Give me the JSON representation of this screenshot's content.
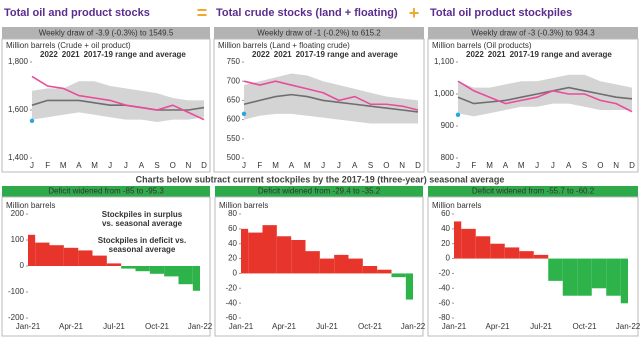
{
  "operators": [
    "=",
    "+"
  ],
  "banner": "Charts below subtract current stockpiles by the 2017-19 (three-year) seasonal average",
  "chart_data": [
    {
      "type": "line",
      "title": "Total oil and product stocks",
      "subtitle": "Weekly draw of -3.9 (-0.3%) to 1549.5",
      "ylabel": "Million barrels (Crude + oil product)",
      "categories": [
        "J",
        "F",
        "M",
        "A",
        "M",
        "J",
        "J",
        "A",
        "S",
        "O",
        "N",
        "D"
      ],
      "series": [
        {
          "name": "2022",
          "color": "#22a7e0",
          "values": [
            1555,
            null,
            null,
            null,
            null,
            null,
            null,
            null,
            null,
            null,
            null,
            null
          ]
        },
        {
          "name": "2021",
          "color": "#ea4c9b",
          "values": [
            1740,
            1700,
            1690,
            1660,
            1650,
            1640,
            1620,
            1610,
            1600,
            1620,
            1590,
            1560
          ]
        },
        {
          "name": "2017-19 range and average",
          "color": "#6e6e6e",
          "band_color": "#d4d4d4",
          "values": [
            1620,
            1640,
            1640,
            1640,
            1630,
            1620,
            1620,
            1610,
            1600,
            1600,
            1600,
            1610
          ],
          "low": [
            1560,
            1570,
            1580,
            1590,
            1580,
            1570,
            1560,
            1560,
            1550,
            1560,
            1560,
            1570
          ],
          "high": [
            1680,
            1690,
            1690,
            1720,
            1720,
            1700,
            1690,
            1680,
            1670,
            1650,
            1640,
            1640
          ]
        }
      ],
      "ylim": [
        1400,
        1800
      ],
      "yticks": [
        {
          "value": 1400,
          "label": "1,400"
        },
        {
          "value": 1600,
          "label": "1,600"
        },
        {
          "value": 1800,
          "label": "1,800"
        }
      ]
    },
    {
      "type": "line",
      "title": "Total crude stocks (land + floating)",
      "subtitle": "Weekly draw of -1 (-0.2%) to 615.2",
      "ylabel": "Million barrels (Land + floating crude)",
      "categories": [
        "J",
        "F",
        "M",
        "A",
        "M",
        "J",
        "J",
        "A",
        "S",
        "O",
        "N",
        "D"
      ],
      "series": [
        {
          "name": "2022",
          "color": "#22a7e0",
          "values": [
            615,
            null,
            null,
            null,
            null,
            null,
            null,
            null,
            null,
            null,
            null,
            null
          ]
        },
        {
          "name": "2021",
          "color": "#ea4c9b",
          "values": [
            700,
            690,
            700,
            690,
            680,
            670,
            650,
            660,
            640,
            640,
            635,
            625
          ]
        },
        {
          "name": "2017-19 range and average",
          "color": "#6e6e6e",
          "band_color": "#d4d4d4",
          "values": [
            640,
            650,
            660,
            665,
            660,
            650,
            645,
            640,
            635,
            630,
            625,
            620
          ],
          "low": [
            600,
            610,
            615,
            615,
            610,
            605,
            600,
            595,
            590,
            590,
            590,
            590
          ],
          "high": [
            690,
            700,
            710,
            720,
            715,
            700,
            690,
            680,
            670,
            660,
            655,
            650
          ]
        }
      ],
      "ylim": [
        500,
        750
      ],
      "yticks": [
        500,
        550,
        600,
        650,
        700,
        750
      ]
    },
    {
      "type": "line",
      "title": "Total oil product stockpiles",
      "subtitle": "Weekly draw of -3 (-0.3%) to 934.3",
      "ylabel": "Million barrels (Oil products)",
      "categories": [
        "J",
        "F",
        "M",
        "A",
        "M",
        "J",
        "J",
        "A",
        "S",
        "O",
        "N",
        "D"
      ],
      "series": [
        {
          "name": "2022",
          "color": "#22a7e0",
          "values": [
            935,
            null,
            null,
            null,
            null,
            null,
            null,
            null,
            null,
            null,
            null,
            null
          ]
        },
        {
          "name": "2021",
          "color": "#ea4c9b",
          "values": [
            1040,
            1010,
            990,
            970,
            980,
            990,
            1010,
            1000,
            1000,
            980,
            970,
            945
          ]
        },
        {
          "name": "2017-19 range and average",
          "color": "#6e6e6e",
          "band_color": "#d4d4d4",
          "values": [
            990,
            970,
            975,
            980,
            990,
            1000,
            1010,
            1020,
            1010,
            1000,
            990,
            985
          ],
          "low": [
            940,
            930,
            940,
            950,
            960,
            960,
            970,
            970,
            960,
            950,
            950,
            950
          ],
          "high": [
            1040,
            1020,
            1020,
            1030,
            1040,
            1040,
            1050,
            1060,
            1060,
            1040,
            1030,
            1020
          ]
        }
      ],
      "ylim": [
        800,
        1100
      ],
      "yticks": [
        800,
        900,
        {
          "value": 1000,
          "label": "1,000"
        },
        {
          "value": 1100,
          "label": "1,100"
        }
      ]
    },
    {
      "type": "area",
      "subtitle": "Deficit widened from -85 to -95.3",
      "ylabel": "Million barrels",
      "categories": [
        "Jan-21",
        null,
        null,
        "Apr-21",
        null,
        null,
        "Jul-21",
        null,
        null,
        "Oct-21",
        null,
        null,
        "Jan-22"
      ],
      "values": [
        120,
        90,
        80,
        70,
        60,
        40,
        10,
        -10,
        -20,
        -30,
        -40,
        -70,
        -95.3
      ],
      "color": "#e8352b",
      "negative_color": "#2db34a",
      "ylim": [
        -200,
        200
      ],
      "yticks": [
        -200,
        -100,
        0,
        100,
        200
      ],
      "annotations": [
        {
          "lines": [
            "Stockpiles in surplus",
            "vs. seasonal average"
          ],
          "color": "#e8352b"
        },
        {
          "lines": [
            "Stockpiles in deficit vs.",
            "seasonal average"
          ],
          "color": "#2db34a"
        }
      ]
    },
    {
      "type": "area",
      "subtitle": "Deficit widened from -29.4 to -35.2",
      "ylabel": "Million barrels",
      "categories": [
        "Jan-21",
        null,
        null,
        "Apr-21",
        null,
        null,
        "Jul-21",
        null,
        null,
        "Oct-21",
        null,
        null,
        "Jan-22"
      ],
      "values": [
        60,
        55,
        65,
        50,
        45,
        30,
        20,
        25,
        20,
        10,
        5,
        -5,
        -35.2
      ],
      "color": "#e8352b",
      "negative_color": "#2db34a",
      "ylim": [
        -60,
        80
      ],
      "yticks": [
        -60,
        -40,
        -20,
        0,
        20,
        40,
        60,
        80
      ]
    },
    {
      "type": "area",
      "subtitle": "Deficit widened from -55.7 to -60.2",
      "ylabel": "Million barrels",
      "categories": [
        "Jan-21",
        null,
        null,
        "Apr-21",
        null,
        null,
        "Jul-21",
        null,
        null,
        "Oct-21",
        null,
        null,
        "Jan-22"
      ],
      "values": [
        50,
        40,
        30,
        20,
        15,
        10,
        5,
        -30,
        -50,
        -50,
        -40,
        -50,
        -60.2
      ],
      "color": "#e8352b",
      "negative_color": "#2db34a",
      "ylim": [
        -80,
        60
      ],
      "yticks": [
        -80,
        -60,
        -40,
        -20,
        0,
        20,
        40,
        60
      ]
    }
  ]
}
